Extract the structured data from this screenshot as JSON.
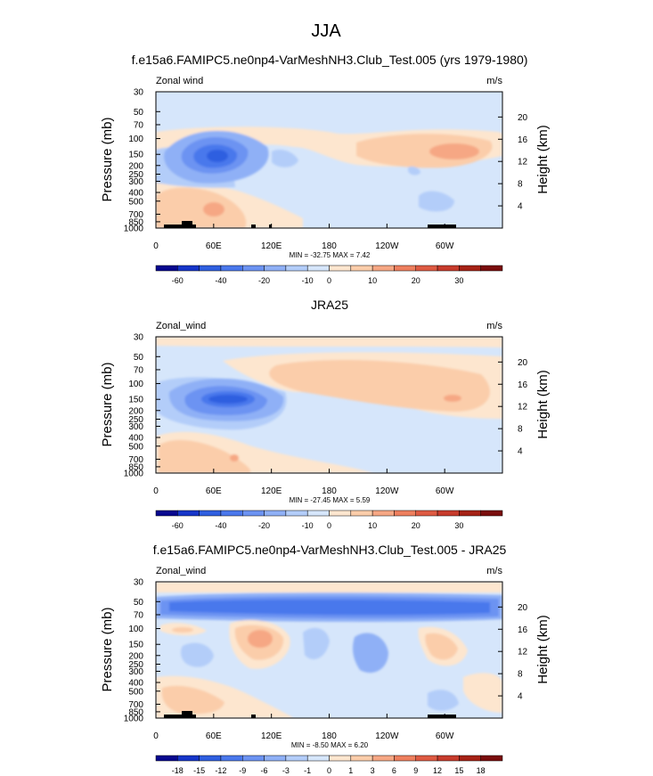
{
  "figure": {
    "title": "JJA",
    "panel1_title": "f.e15a6.FAMIPC5.ne0np4-VarMeshNH3.Club_Test.005 (yrs 1979-1980)",
    "panel2_title": "JRA25",
    "panel3_title": "f.e15a6.FAMIPC5.ne0np4-VarMeshNH3.Club_Test.005 - JRA25"
  },
  "chart_data": [
    {
      "type": "heatmap",
      "title": "f.e15a6.FAMIPC5.ne0np4-VarMeshNH3.Club_Test.005 (yrs 1979-1980)",
      "left_label": "Zonal wind",
      "right_label": "m/s",
      "ylabel": "Pressure (mb)",
      "ylabel_right": "Height (km)",
      "x_ticks": [
        "0",
        "60E",
        "120E",
        "180",
        "120W",
        "60W"
      ],
      "x_range": [
        0,
        360
      ],
      "y_ticks": [
        "30",
        "50",
        "70",
        "100",
        "150",
        "200",
        "250",
        "300",
        "400",
        "500",
        "700",
        "850",
        "1000"
      ],
      "y_range": [
        1000,
        30
      ],
      "height_ticks": [
        "20",
        "16",
        "12",
        "8",
        "4"
      ],
      "stats": "MIN = -32.75   MAX =   7.42",
      "colorbar": {
        "labels": [
          "-60",
          "-40",
          "-20",
          "-10",
          "0",
          "10",
          "20",
          "30"
        ],
        "colors": [
          "#08088f",
          "#1635c9",
          "#2f5fe0",
          "#4a78ec",
          "#6c93f2",
          "#8fb0f6",
          "#b3cdf9",
          "#d6e6fb",
          "#fde6cf",
          "#fbcdaa",
          "#f6a784",
          "#ee7f5e",
          "#de5a42",
          "#c73b2c",
          "#a62216",
          "#7a0d0d"
        ]
      },
      "fields": [
        {
          "lon": 0,
          "lat": 0,
          "p": 1000,
          "u": 0
        }
      ]
    },
    {
      "type": "heatmap",
      "title": "JRA25",
      "left_label": "Zonal_wind",
      "right_label": "m/s",
      "ylabel": "Pressure (mb)",
      "ylabel_right": "Height (km)",
      "x_ticks": [
        "0",
        "60E",
        "120E",
        "180",
        "120W",
        "60W"
      ],
      "x_range": [
        0,
        360
      ],
      "y_ticks": [
        "30",
        "50",
        "70",
        "100",
        "150",
        "200",
        "250",
        "300",
        "400",
        "500",
        "700",
        "850",
        "1000"
      ],
      "y_range": [
        1000,
        30
      ],
      "height_ticks": [
        "20",
        "16",
        "12",
        "8",
        "4"
      ],
      "stats": "MIN = -27.45   MAX =   5.59",
      "colorbar": {
        "labels": [
          "-60",
          "-40",
          "-20",
          "-10",
          "0",
          "10",
          "20",
          "30"
        ],
        "colors": [
          "#08088f",
          "#1635c9",
          "#2f5fe0",
          "#4a78ec",
          "#6c93f2",
          "#8fb0f6",
          "#b3cdf9",
          "#d6e6fb",
          "#fde6cf",
          "#fbcdaa",
          "#f6a784",
          "#ee7f5e",
          "#de5a42",
          "#c73b2c",
          "#a62216",
          "#7a0d0d"
        ]
      }
    },
    {
      "type": "heatmap",
      "title": "f.e15a6.FAMIPC5.ne0np4-VarMeshNH3.Club_Test.005 - JRA25",
      "left_label": "Zonal_wind",
      "right_label": "m/s",
      "ylabel": "Pressure (mb)",
      "ylabel_right": "Height (km)",
      "x_ticks": [
        "0",
        "60E",
        "120E",
        "180",
        "120W",
        "60W"
      ],
      "x_range": [
        0,
        360
      ],
      "y_ticks": [
        "30",
        "50",
        "70",
        "100",
        "150",
        "200",
        "250",
        "300",
        "400",
        "500",
        "700",
        "850",
        "1000"
      ],
      "y_range": [
        1000,
        30
      ],
      "height_ticks": [
        "20",
        "16",
        "12",
        "8",
        "4"
      ],
      "stats": "MIN =   -8.50   MAX =   6.20",
      "colorbar": {
        "labels": [
          "-18",
          "-15",
          "-12",
          "-9",
          "-6",
          "-3",
          "-1",
          "0",
          "1",
          "3",
          "6",
          "9",
          "12",
          "15",
          "18"
        ],
        "colors": [
          "#08088f",
          "#1635c9",
          "#2f5fe0",
          "#4a78ec",
          "#6c93f2",
          "#8fb0f6",
          "#b3cdf9",
          "#d6e6fb",
          "#fde6cf",
          "#fbcdaa",
          "#f6a784",
          "#ee7f5e",
          "#de5a42",
          "#c73b2c",
          "#a62216",
          "#7a0d0d"
        ]
      }
    }
  ]
}
